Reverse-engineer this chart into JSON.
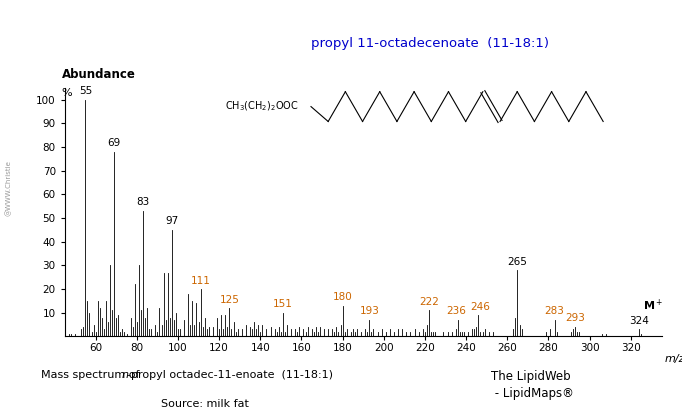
{
  "title": "propyl 11-octadecenoate  (11-18:1)",
  "title_color": "#0000cc",
  "xlabel": "m/z",
  "ylabel_top": "Abundance",
  "ylabel_bot": "%",
  "xlim": [
    45,
    335
  ],
  "ylim": [
    0,
    105
  ],
  "xticks": [
    60,
    80,
    100,
    120,
    140,
    160,
    180,
    200,
    220,
    240,
    260,
    280,
    300,
    320
  ],
  "yticks": [
    10,
    20,
    30,
    40,
    50,
    60,
    70,
    80,
    90,
    100
  ],
  "footer_left1": "Mass spectrum of ",
  "footer_left2": "n",
  "footer_left3": "-propyl octadec-11-enoate  (11-18:1)",
  "footer_right": "The LipidWeb\n - LipidMaps®",
  "source": "Source: milk fat",
  "labeled_peaks": {
    "55": 100,
    "69": 78,
    "83": 53,
    "97": 45,
    "111": 20,
    "125": 12,
    "151": 10,
    "180": 13,
    "193": 7,
    "222": 11,
    "236": 7,
    "246": 9,
    "265": 28,
    "283": 7,
    "293": 4,
    "324": 3
  },
  "all_peaks": [
    [
      47,
      1
    ],
    [
      48,
      1
    ],
    [
      50,
      1
    ],
    [
      53,
      3
    ],
    [
      54,
      4
    ],
    [
      55,
      100
    ],
    [
      56,
      15
    ],
    [
      57,
      10
    ],
    [
      58,
      2
    ],
    [
      59,
      5
    ],
    [
      60,
      2
    ],
    [
      61,
      15
    ],
    [
      62,
      12
    ],
    [
      63,
      8
    ],
    [
      64,
      3
    ],
    [
      65,
      15
    ],
    [
      66,
      6
    ],
    [
      67,
      30
    ],
    [
      68,
      11
    ],
    [
      69,
      78
    ],
    [
      70,
      8
    ],
    [
      71,
      9
    ],
    [
      72,
      2
    ],
    [
      73,
      3
    ],
    [
      74,
      2
    ],
    [
      75,
      1
    ],
    [
      77,
      8
    ],
    [
      78,
      4
    ],
    [
      79,
      22
    ],
    [
      80,
      6
    ],
    [
      81,
      30
    ],
    [
      82,
      11
    ],
    [
      83,
      53
    ],
    [
      84,
      8
    ],
    [
      85,
      12
    ],
    [
      86,
      3
    ],
    [
      87,
      3
    ],
    [
      89,
      5
    ],
    [
      90,
      2
    ],
    [
      91,
      12
    ],
    [
      92,
      5
    ],
    [
      93,
      27
    ],
    [
      94,
      7
    ],
    [
      95,
      27
    ],
    [
      96,
      8
    ],
    [
      97,
      45
    ],
    [
      98,
      7
    ],
    [
      99,
      10
    ],
    [
      100,
      3
    ],
    [
      101,
      3
    ],
    [
      103,
      7
    ],
    [
      105,
      18
    ],
    [
      106,
      5
    ],
    [
      107,
      15
    ],
    [
      108,
      5
    ],
    [
      109,
      14
    ],
    [
      110,
      6
    ],
    [
      111,
      20
    ],
    [
      112,
      4
    ],
    [
      113,
      8
    ],
    [
      114,
      3
    ],
    [
      115,
      4
    ],
    [
      117,
      4
    ],
    [
      119,
      8
    ],
    [
      120,
      3
    ],
    [
      121,
      9
    ],
    [
      122,
      3
    ],
    [
      123,
      9
    ],
    [
      124,
      4
    ],
    [
      125,
      12
    ],
    [
      126,
      3
    ],
    [
      127,
      6
    ],
    [
      128,
      2
    ],
    [
      129,
      3
    ],
    [
      131,
      3
    ],
    [
      133,
      5
    ],
    [
      135,
      4
    ],
    [
      136,
      3
    ],
    [
      137,
      6
    ],
    [
      138,
      3
    ],
    [
      139,
      5
    ],
    [
      140,
      2
    ],
    [
      141,
      5
    ],
    [
      143,
      3
    ],
    [
      145,
      4
    ],
    [
      147,
      3
    ],
    [
      148,
      2
    ],
    [
      149,
      4
    ],
    [
      150,
      2
    ],
    [
      151,
      10
    ],
    [
      152,
      2
    ],
    [
      153,
      5
    ],
    [
      155,
      3
    ],
    [
      157,
      3
    ],
    [
      158,
      2
    ],
    [
      159,
      4
    ],
    [
      161,
      3
    ],
    [
      162,
      2
    ],
    [
      163,
      4
    ],
    [
      165,
      3
    ],
    [
      166,
      2
    ],
    [
      167,
      4
    ],
    [
      168,
      2
    ],
    [
      169,
      4
    ],
    [
      171,
      3
    ],
    [
      173,
      3
    ],
    [
      175,
      3
    ],
    [
      176,
      2
    ],
    [
      177,
      4
    ],
    [
      178,
      2
    ],
    [
      179,
      5
    ],
    [
      180,
      13
    ],
    [
      181,
      2
    ],
    [
      182,
      3
    ],
    [
      184,
      2
    ],
    [
      185,
      3
    ],
    [
      186,
      2
    ],
    [
      187,
      3
    ],
    [
      189,
      2
    ],
    [
      191,
      3
    ],
    [
      192,
      2
    ],
    [
      193,
      7
    ],
    [
      194,
      2
    ],
    [
      195,
      3
    ],
    [
      197,
      2
    ],
    [
      199,
      3
    ],
    [
      201,
      2
    ],
    [
      203,
      3
    ],
    [
      205,
      2
    ],
    [
      207,
      3
    ],
    [
      209,
      3
    ],
    [
      211,
      2
    ],
    [
      213,
      2
    ],
    [
      215,
      3
    ],
    [
      217,
      2
    ],
    [
      219,
      3
    ],
    [
      220,
      2
    ],
    [
      221,
      5
    ],
    [
      222,
      11
    ],
    [
      223,
      2
    ],
    [
      224,
      2
    ],
    [
      225,
      2
    ],
    [
      229,
      2
    ],
    [
      231,
      2
    ],
    [
      233,
      2
    ],
    [
      235,
      3
    ],
    [
      236,
      7
    ],
    [
      237,
      2
    ],
    [
      238,
      2
    ],
    [
      239,
      2
    ],
    [
      241,
      2
    ],
    [
      243,
      3
    ],
    [
      244,
      3
    ],
    [
      245,
      4
    ],
    [
      246,
      9
    ],
    [
      247,
      2
    ],
    [
      248,
      2
    ],
    [
      249,
      3
    ],
    [
      251,
      2
    ],
    [
      253,
      2
    ],
    [
      263,
      3
    ],
    [
      264,
      8
    ],
    [
      265,
      28
    ],
    [
      266,
      5
    ],
    [
      267,
      3
    ],
    [
      279,
      2
    ],
    [
      281,
      3
    ],
    [
      283,
      7
    ],
    [
      284,
      2
    ],
    [
      291,
      2
    ],
    [
      292,
      3
    ],
    [
      293,
      4
    ],
    [
      294,
      2
    ],
    [
      295,
      2
    ],
    [
      306,
      1
    ],
    [
      308,
      1
    ],
    [
      324,
      3
    ],
    [
      325,
      1
    ]
  ],
  "orange_labels": [
    "111",
    "125",
    "151",
    "180",
    "193",
    "222",
    "236",
    "246",
    "283",
    "293"
  ],
  "black_labels": [
    "55",
    "69",
    "83",
    "97",
    "265",
    "324"
  ],
  "watermark": "@WWW.Christie",
  "background_color": "#ffffff"
}
